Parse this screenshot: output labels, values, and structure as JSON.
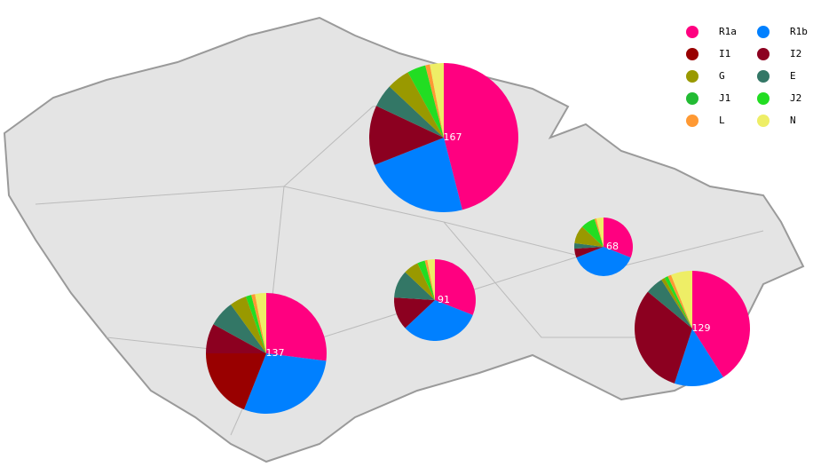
{
  "chart_data": {
    "type": "pie",
    "legend": [
      {
        "name": "R1a",
        "color": "#ff0080"
      },
      {
        "name": "R1b",
        "color": "#0080ff"
      },
      {
        "name": "I1",
        "color": "#990000"
      },
      {
        "name": "I2",
        "color": "#8c0020"
      },
      {
        "name": "G",
        "color": "#999900"
      },
      {
        "name": "E",
        "color": "#337766"
      },
      {
        "name": "J1",
        "color": "#22bb33"
      },
      {
        "name": "J2",
        "color": "#22dd22"
      },
      {
        "name": "L",
        "color": "#ff9933"
      },
      {
        "name": "N",
        "color": "#eeee66"
      }
    ],
    "pies": [
      {
        "n": 167,
        "values": [
          46,
          23,
          0,
          13,
          5,
          5,
          0,
          4,
          1,
          3
        ]
      },
      {
        "n": 137,
        "values": [
          27,
          29,
          19,
          8,
          4.5,
          7,
          0,
          1.5,
          1,
          3
        ]
      },
      {
        "n": 91,
        "values": [
          31,
          32,
          0,
          13,
          6,
          11,
          0,
          3,
          1,
          3
        ]
      },
      {
        "n": 68,
        "values": [
          31,
          38,
          0,
          5,
          10,
          3,
          0,
          8,
          1,
          4
        ]
      },
      {
        "n": 129,
        "values": [
          41,
          14,
          0,
          31,
          1,
          5,
          0,
          1,
          1,
          6
        ]
      }
    ]
  }
}
